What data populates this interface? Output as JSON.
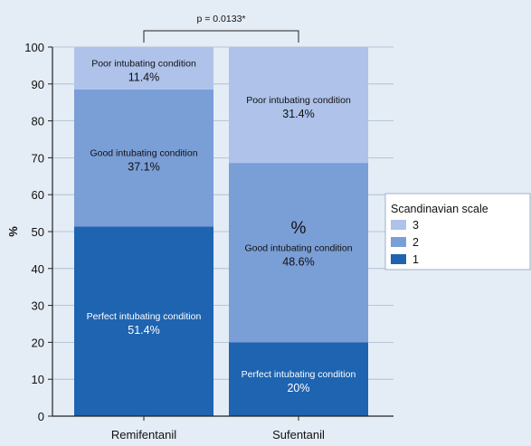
{
  "chart_data": {
    "type": "bar",
    "stacked": true,
    "categories": [
      "Remifentanil",
      "Sufentanil"
    ],
    "ylabel": "%",
    "ylim": [
      0,
      100
    ],
    "yticks": [
      0,
      10,
      20,
      30,
      40,
      50,
      60,
      70,
      80,
      90,
      100
    ],
    "series": [
      {
        "name": "1",
        "color": "#1e64b0",
        "values": [
          51.4,
          20
        ]
      },
      {
        "name": "2",
        "color": "#7a9ed6",
        "values": [
          37.1,
          48.6
        ]
      },
      {
        "name": "3",
        "color": "#aec2ea",
        "values": [
          11.4,
          31.4
        ]
      }
    ],
    "segment_labels": [
      [
        {
          "label": "Perfect intubating condition",
          "value": "51.4%",
          "text_color": "#ffffff"
        },
        {
          "label": "Good intubating condition",
          "value": "37.1%",
          "text_color": "#111111"
        },
        {
          "label": "Poor intubating condition",
          "value": "11.4%",
          "text_color": "#111111"
        }
      ],
      [
        {
          "label": "Perfect intubating condition",
          "value": "20%",
          "text_color": "#ffffff"
        },
        {
          "label": "Good intubating condition",
          "value": "48.6%",
          "text_color": "#111111"
        },
        {
          "label": "Poor intubating condition",
          "value": "31.4%",
          "text_color": "#111111"
        }
      ]
    ],
    "annotation": {
      "text": "p = 0.0133*",
      "between": [
        "Remifentanil",
        "Sufentanil"
      ]
    },
    "center_annotation": "%",
    "legend": {
      "title": "Scandinavian scale",
      "position": "right",
      "order": [
        "3",
        "2",
        "1"
      ]
    },
    "grid": true
  }
}
